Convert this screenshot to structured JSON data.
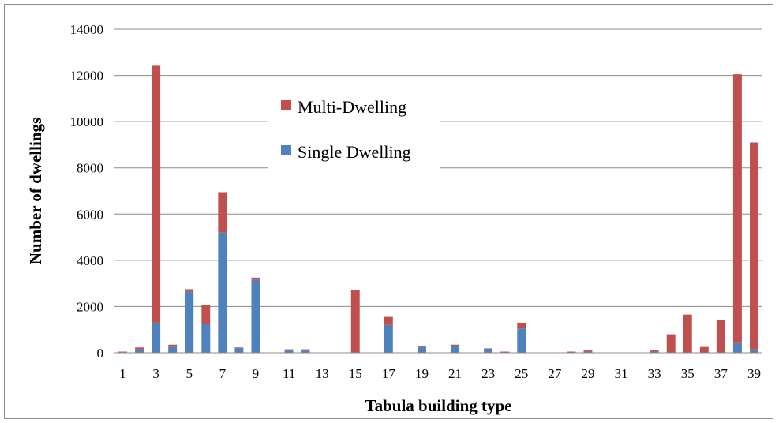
{
  "chart_data": {
    "type": "bar",
    "stacked": true,
    "title": "",
    "xlabel": "Tabula building type",
    "ylabel": "Number of dwellings",
    "ylim": [
      0,
      14000
    ],
    "yticks": [
      0,
      2000,
      4000,
      6000,
      8000,
      10000,
      12000,
      14000
    ],
    "categories": [
      1,
      2,
      3,
      4,
      5,
      6,
      7,
      8,
      9,
      10,
      11,
      12,
      13,
      14,
      15,
      16,
      17,
      18,
      19,
      20,
      21,
      22,
      23,
      24,
      25,
      26,
      27,
      28,
      29,
      30,
      31,
      32,
      33,
      34,
      35,
      36,
      37,
      38,
      39
    ],
    "xtick_labels": [
      "1",
      "3",
      "5",
      "7",
      "9",
      "11",
      "13",
      "15",
      "17",
      "19",
      "21",
      "23",
      "25",
      "27",
      "29",
      "31",
      "33",
      "35",
      "37",
      "39"
    ],
    "grid": "horizontal major",
    "legend_position": "upper-left-center",
    "series": [
      {
        "name": "Single Dwelling",
        "color": "#4f81bd",
        "values": [
          20,
          150,
          1300,
          250,
          2650,
          1250,
          5200,
          200,
          3150,
          0,
          100,
          100,
          0,
          0,
          0,
          0,
          1200,
          0,
          250,
          0,
          300,
          0,
          170,
          0,
          1050,
          0,
          0,
          0,
          50,
          0,
          0,
          0,
          50,
          0,
          0,
          0,
          0,
          450,
          150
        ]
      },
      {
        "name": "Multi-Dwelling",
        "color": "#c0504d",
        "values": [
          30,
          80,
          11150,
          100,
          100,
          800,
          1750,
          30,
          100,
          0,
          50,
          50,
          0,
          0,
          2700,
          0,
          350,
          0,
          50,
          0,
          50,
          0,
          20,
          50,
          250,
          0,
          0,
          50,
          50,
          0,
          0,
          0,
          50,
          800,
          1650,
          250,
          1420,
          11600,
          8950
        ]
      }
    ]
  }
}
